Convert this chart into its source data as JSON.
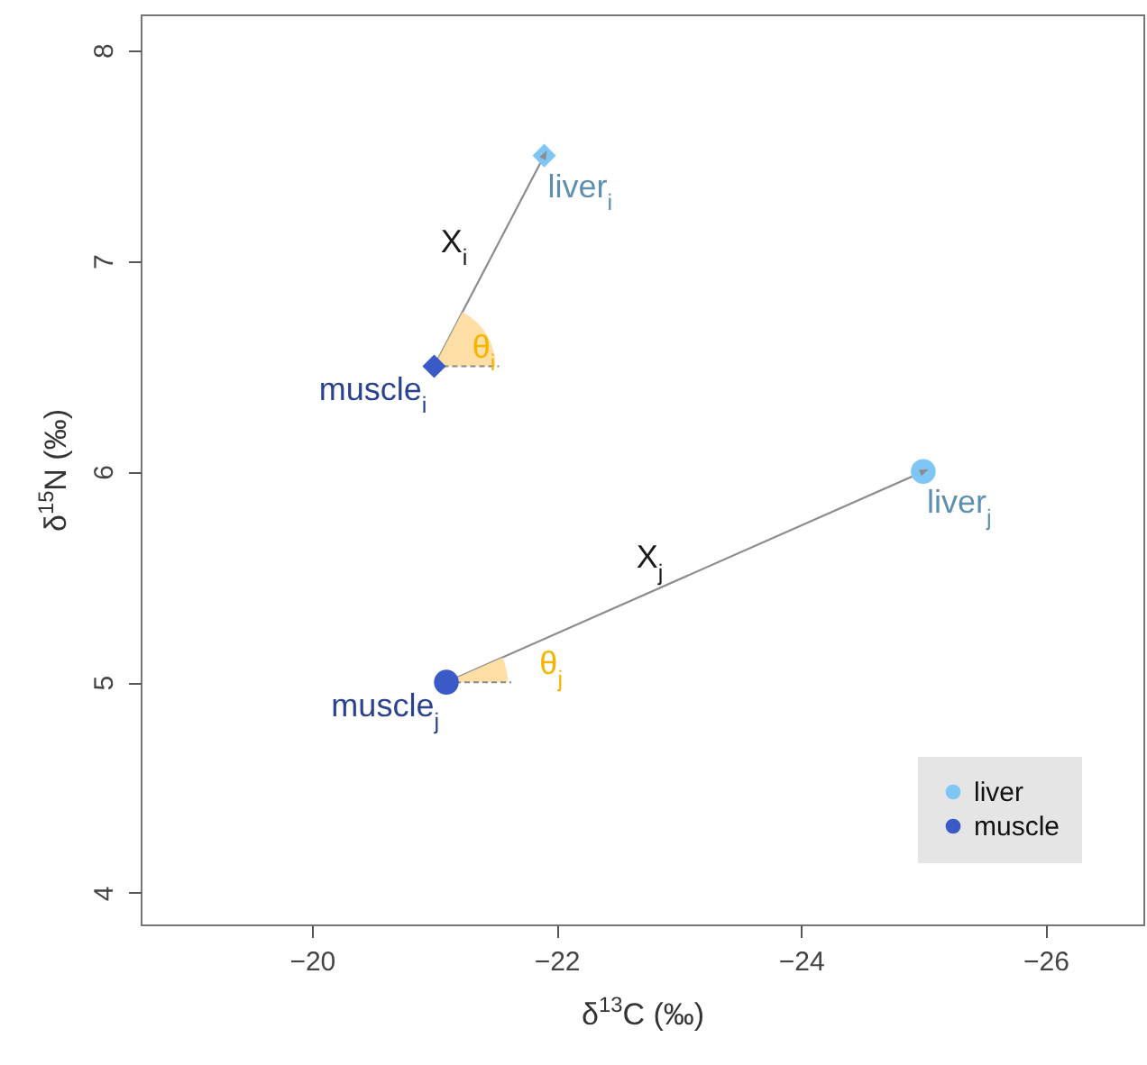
{
  "chart_data": {
    "type": "scatter",
    "xlabel": "δ$^{13}$C (‰)",
    "ylabel": "δ$^{15}$N (‰)",
    "xlim": [
      -18.6,
      -26.8
    ],
    "ylim": [
      3.85,
      8.17
    ],
    "xticks": [
      -20,
      -22,
      -24,
      -26
    ],
    "yticks": [
      4,
      5,
      6,
      7,
      8
    ],
    "grid": false,
    "legend": "bottom right",
    "marker": "circle",
    "series": [
      {
        "type": "line",
        "color": "#8c8c8c",
        "x": [
          -21,
          -21.9
        ],
        "values": [
          6.5,
          7.5
        ],
        "marker": "triangle"
      },
      {
        "type": "line",
        "color": "#8c8c8c",
        "x": [
          -21.1,
          -25
        ],
        "values": [
          5,
          6
        ],
        "marker": "triangle"
      },
      {
        "name": "liver",
        "color": "#80c6f4",
        "x": [
          -25
        ],
        "values": [
          6
        ]
      },
      {
        "name": "muscle",
        "color": "#3a5bc7",
        "x": [
          -21.1
        ],
        "values": [
          5
        ]
      },
      {
        "color": "#80c6f4",
        "x": [
          -21.9
        ],
        "values": [
          7.5
        ],
        "marker": "diamond"
      },
      {
        "color": "#3a5bc7",
        "x": [
          -21
        ],
        "values": [
          6.5
        ],
        "marker": "diamond"
      }
    ],
    "annotations": [
      {
        "text": "liver$_{i}$",
        "x": -21.9,
        "y": 7.5
      },
      {
        "text": "muscle$_{i}$",
        "x": -21,
        "y": 6.5
      },
      {
        "text": "X$_{i}$",
        "x": -21.45,
        "y": 7.0
      },
      {
        "text": "θ$_{i}$",
        "x": -21.135,
        "y": 6.65
      },
      {
        "text": "liver$_{j}$",
        "x": -25,
        "y": 6
      },
      {
        "text": "X$_{j}$",
        "x": -23.05,
        "y": 5.5
      },
      {
        "text": "muscle$_{j}$",
        "x": -21.1,
        "y": 5
      },
      {
        "text": "θ$_{j}$",
        "x": -21.685,
        "y": 5.15
      }
    ]
  }
}
